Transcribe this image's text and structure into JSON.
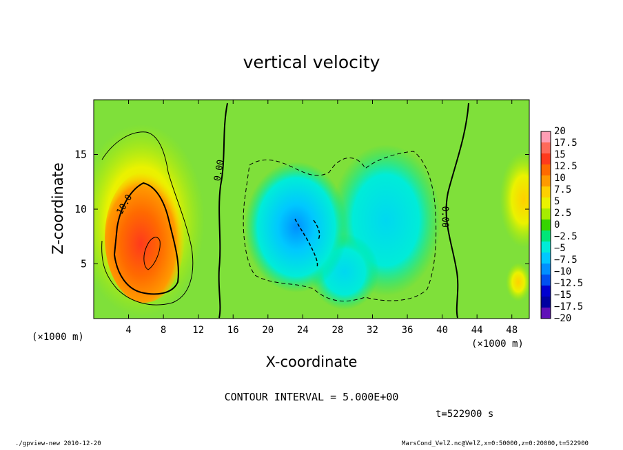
{
  "chart_data": {
    "type": "heatmap",
    "title": "vertical velocity",
    "xlabel": "X-coordinate",
    "ylabel": "Z-coordinate",
    "x_unit_label": "(×1000 m)",
    "y_unit_label": "(×1000 m)",
    "xlim": [
      0,
      50
    ],
    "ylim": [
      0,
      20
    ],
    "x_ticks": [
      4,
      8,
      12,
      16,
      20,
      24,
      28,
      32,
      36,
      40,
      44,
      48
    ],
    "y_ticks": [
      5,
      10,
      15
    ],
    "colorbar": {
      "levels": [
        "20",
        "17.5",
        "15",
        "12.5",
        "10",
        "7.5",
        "5",
        "2.5",
        "0",
        "−2.5",
        "−5",
        "−7.5",
        "−10",
        "−12.5",
        "−15",
        "−17.5",
        "−20"
      ],
      "colors": [
        "#ff9eb4",
        "#ff6a5a",
        "#ff3a1c",
        "#ff6a00",
        "#ff9a00",
        "#ffd000",
        "#eaf200",
        "#a6ec00",
        "#36d400",
        "#00e678",
        "#00ecd8",
        "#00c8ff",
        "#0090ff",
        "#0050f0",
        "#0000d0",
        "#0000a0",
        "#6010b8"
      ]
    },
    "contour_labels": [
      "10.0",
      "0.00",
      "0.00"
    ],
    "background_color": "#7fe03a",
    "features": [
      {
        "name": "updraft-core",
        "x": 6,
        "z": 7,
        "value": 14
      },
      {
        "name": "updraft-halo",
        "x": 6,
        "z": 9,
        "value": 7
      },
      {
        "name": "downdraft-core",
        "x": 23,
        "z": 7.5,
        "value": -9
      },
      {
        "name": "downdraft-right",
        "x": 35,
        "z": 10,
        "value": -5
      },
      {
        "name": "weak-updraft-right",
        "x": 48.5,
        "z": 11,
        "value": 6
      }
    ]
  },
  "annotations": {
    "contour_interval": "CONTOUR INTERVAL = 5.000E+00",
    "time": "t=522900 s",
    "footer_left": "./gpview-new  2010-12-20",
    "footer_right": "MarsCond_VelZ.nc@VelZ,x=0:50000,z=0:20000,t=522900"
  }
}
